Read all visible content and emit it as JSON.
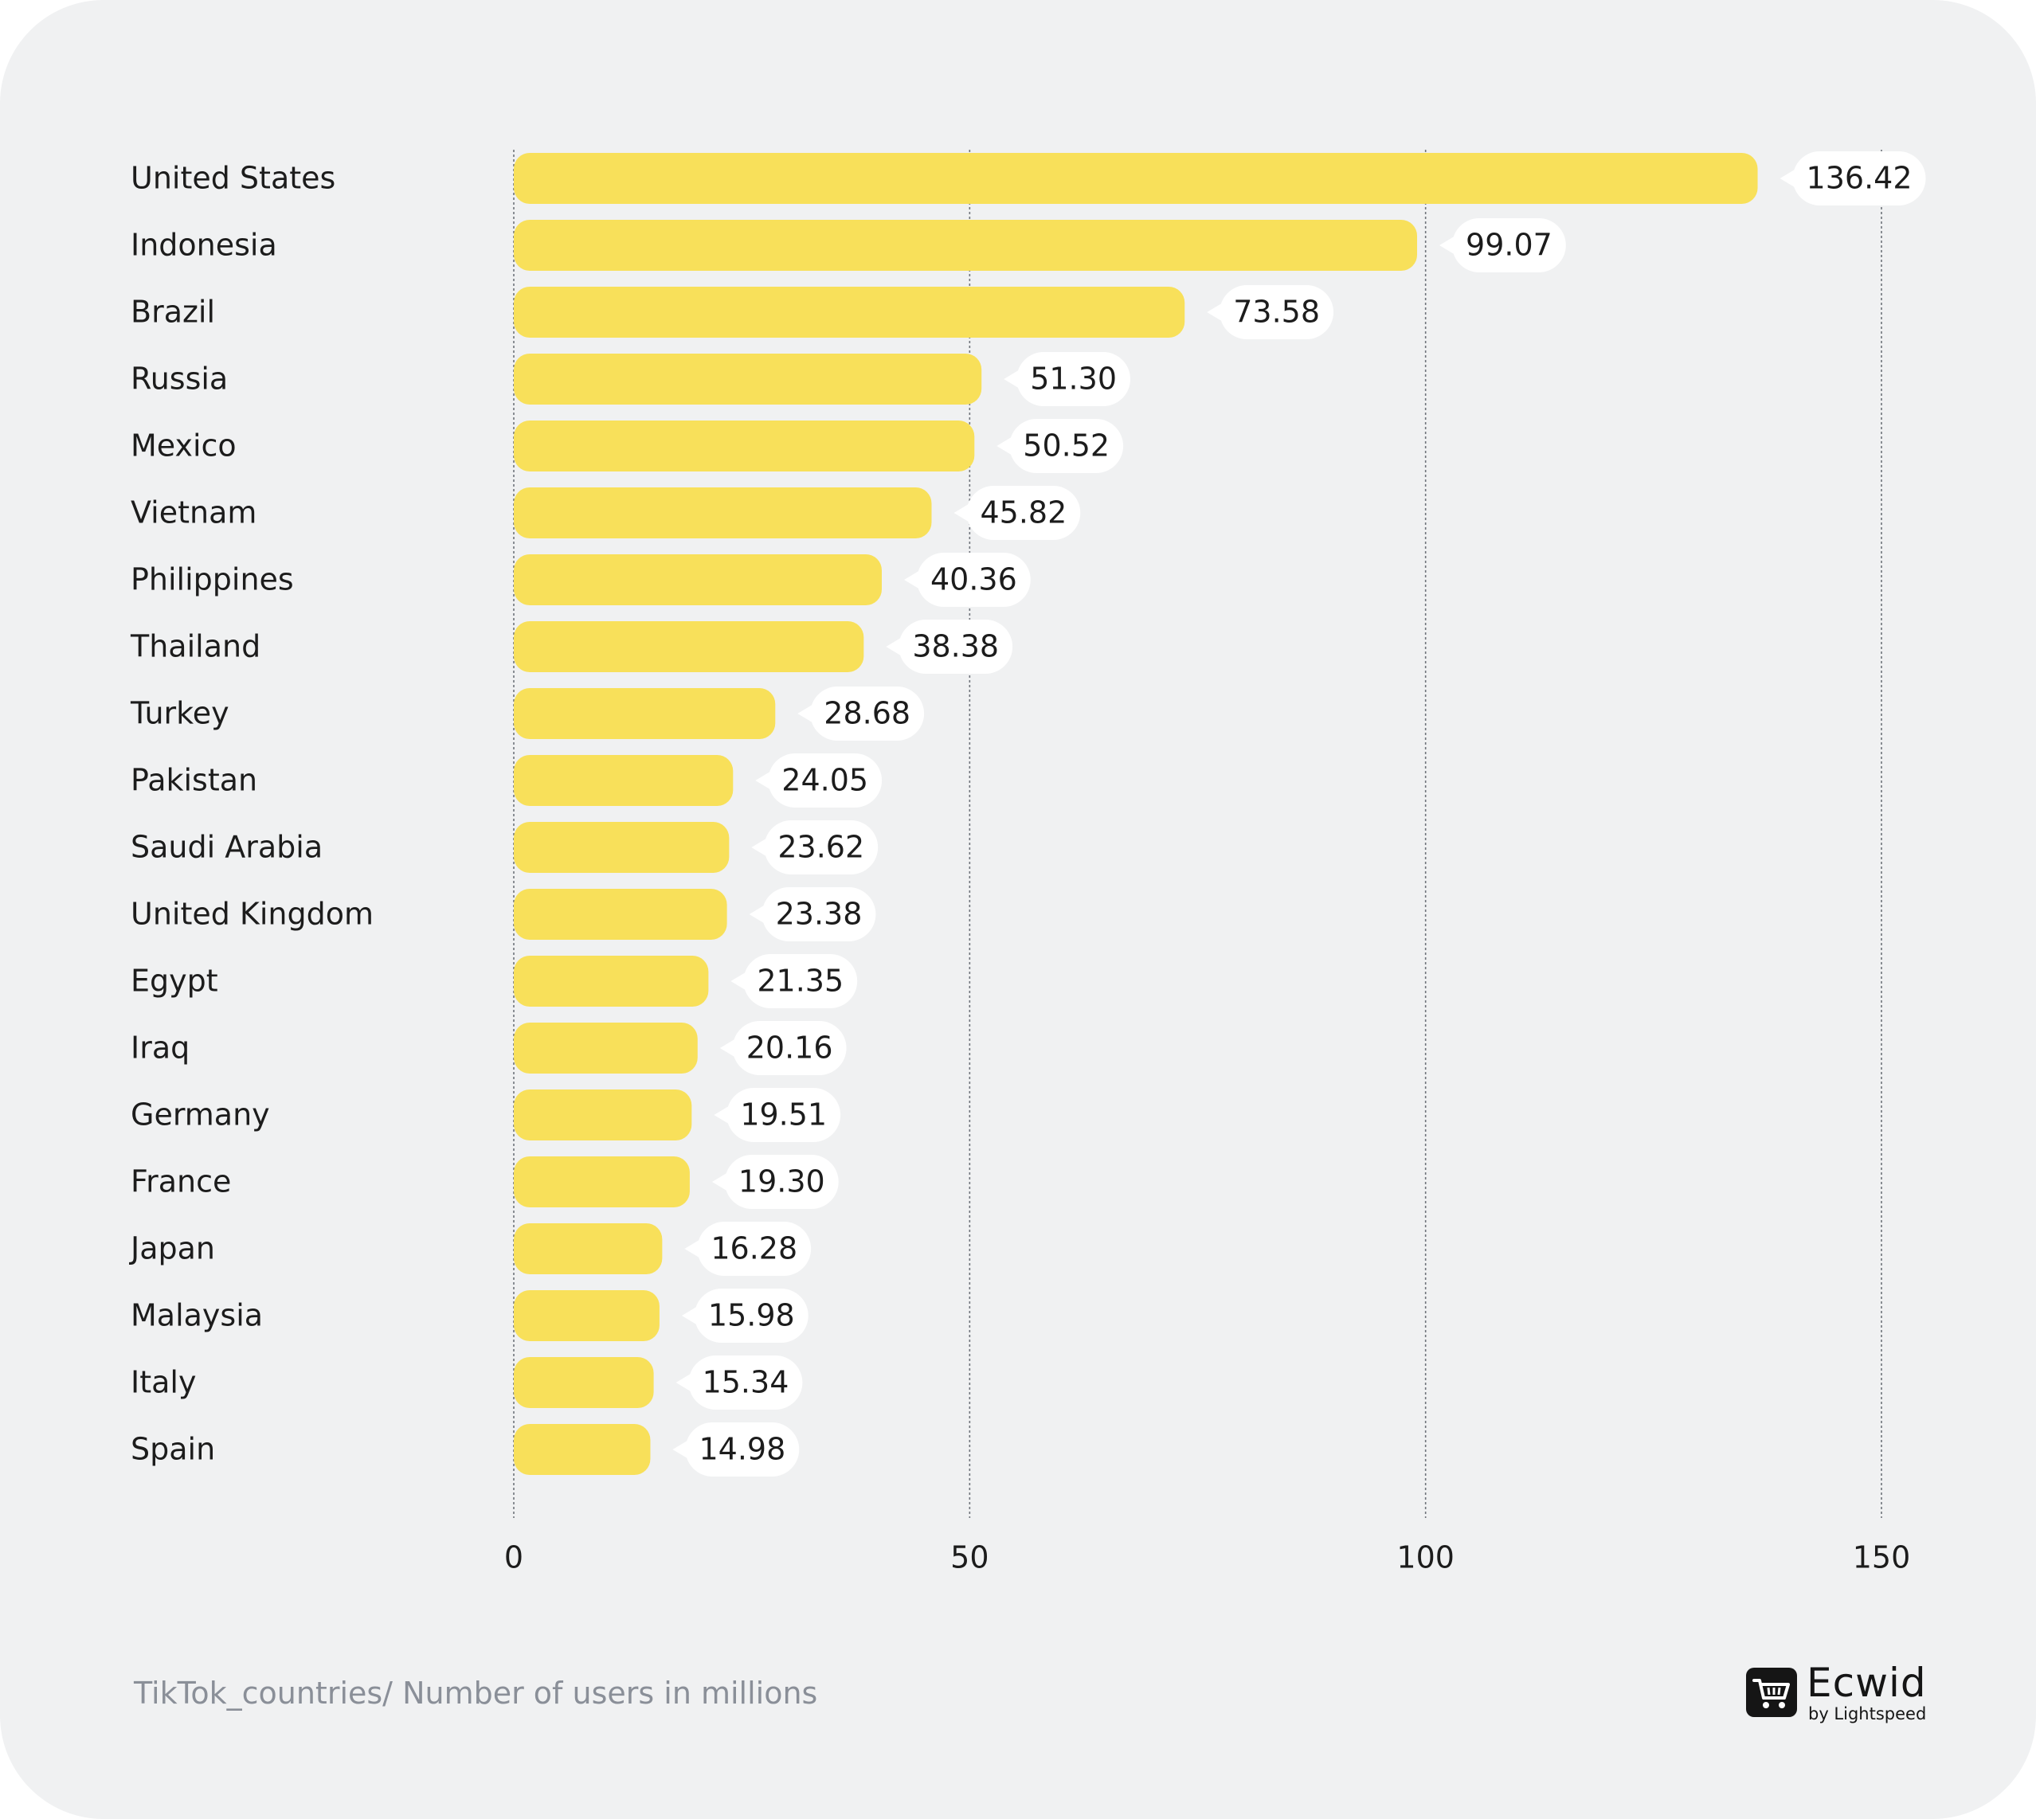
{
  "chart_data": {
    "type": "bar",
    "orientation": "horizontal",
    "categories": [
      "United States",
      "Indonesia",
      "Brazil",
      "Russia",
      "Mexico",
      "Vietnam",
      "Philippines",
      "Thailand",
      "Turkey",
      "Pakistan",
      "Saudi Arabia",
      "United Kingdom",
      "Egypt",
      "Iraq",
      "Germany",
      "France",
      "Japan",
      "Malaysia",
      "Italy",
      "Spain"
    ],
    "values": [
      136.42,
      99.07,
      73.58,
      51.3,
      50.52,
      45.82,
      40.36,
      38.38,
      28.68,
      24.05,
      23.62,
      23.38,
      21.35,
      20.16,
      19.51,
      19.3,
      16.28,
      15.98,
      15.34,
      14.98
    ],
    "value_labels": [
      "136.42",
      "99.07",
      "73.58",
      "51.30",
      "50.52",
      "45.82",
      "40.36",
      "38.38",
      "28.68",
      "24.05",
      "23.62",
      "23.38",
      "21.35",
      "20.16",
      "19.51",
      "19.30",
      "16.28",
      "15.98",
      "15.34",
      "14.98"
    ],
    "xticks": [
      0,
      50,
      100,
      150
    ],
    "xtick_labels": [
      "0",
      "50",
      "100",
      "150"
    ],
    "xlim": [
      0,
      150
    ],
    "grid": "dashed vertical",
    "bar_color": "#f8e05a",
    "title": "",
    "xlabel": "",
    "ylabel": ""
  },
  "caption": "TikTok_countries/ Number of users in millions",
  "logo": {
    "name": "Ecwid",
    "subtitle": "by Lightspeed",
    "icon": "shopping-cart-icon"
  },
  "colors": {
    "background": "#f0f1f2",
    "bar": "#f8e05a",
    "label_bubble": "#ffffff",
    "caption": "#8a8f98"
  }
}
